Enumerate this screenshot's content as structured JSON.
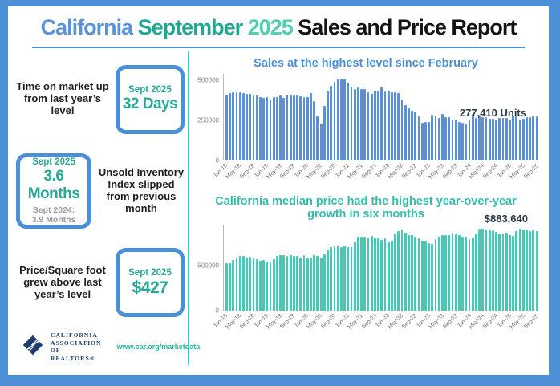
{
  "title": {
    "part1": "California",
    "part2": "September",
    "part3": "2025",
    "part4": "Sales and Price Report"
  },
  "colors": {
    "frame_blue": "#4e90d5",
    "divider_teal": "#40c9b6",
    "stat_teal": "#29a896",
    "stat_gray": "#9b9b9b",
    "annotation_dark": "#2d3a45"
  },
  "stats": [
    {
      "label": "Time on market up from last year’s level",
      "box_heading": "Sept 2025",
      "box_value": "32 Days"
    },
    {
      "box_heading": "Sept 2025",
      "box_value": "3.6 Months",
      "box_sub1": "Sept 2024:",
      "box_sub2": "3.9 Months",
      "label": "Unsold Inventory Index slipped from previous month"
    },
    {
      "label": "Price/Square foot grew above last year’s level",
      "box_heading": "Sept 2025",
      "box_value": "$427"
    }
  ],
  "footer": {
    "org_line1": "CALIFORNIA",
    "org_line2": "ASSOCIATION",
    "org_line3": "OF REALTORS®",
    "url": "www.car.org/marketdata"
  },
  "chart_data": [
    {
      "type": "bar",
      "title": "Sales at the highest level since February",
      "title_color": "#4a90d8",
      "bar_color": "#5c90d6",
      "annotation": "277,410 Units",
      "ylabel": "",
      "xlabel": "",
      "ylim": [
        0,
        540000
      ],
      "grid": false,
      "y_ticks": [
        {
          "label": "500000",
          "value": 500000
        },
        {
          "label": "250000",
          "value": 250000
        },
        {
          "label": "0",
          "value": 0
        }
      ],
      "x_tick_every": 4,
      "x_tick_labels": [
        "Jan-18",
        "May-18",
        "Sep-18",
        "Jan-19",
        "May-19",
        "Sep-19",
        "Jan-20",
        "May-20",
        "Sep-20",
        "Jan-21",
        "May-21",
        "Sep-21",
        "Jan-22",
        "May-22",
        "Sep-22",
        "Jan-23",
        "May-23",
        "Sep-23",
        "Jan-24",
        "May-24",
        "Sep-24",
        "Jan-25",
        "May-25",
        "Sep-25"
      ],
      "values": [
        412000,
        423000,
        424000,
        427000,
        425000,
        423000,
        416000,
        415000,
        404000,
        404000,
        398000,
        390000,
        397000,
        383000,
        397000,
        396000,
        404000,
        390000,
        411000,
        406000,
        404000,
        404000,
        402000,
        398000,
        395000,
        421000,
        373000,
        277000,
        232000,
        339000,
        437000,
        465000,
        489000,
        512000,
        508000,
        509000,
        484000,
        462000,
        446000,
        458000,
        445000,
        444000,
        428000,
        414000,
        438000,
        434000,
        454000,
        430000,
        430000,
        424000,
        426000,
        419000,
        380000,
        344000,
        331000,
        313000,
        306000,
        274000,
        238000,
        241000,
        242000,
        284000,
        281000,
        267000,
        290000,
        270000,
        270000,
        254000,
        254000,
        241000,
        237000,
        225000,
        256000,
        290000,
        267000,
        276000,
        272000,
        270000,
        261000,
        263000,
        253000,
        264000,
        268000,
        268000,
        254000,
        283000,
        277000,
        254000,
        263000,
        270000,
        272000,
        276000,
        277410
      ]
    },
    {
      "type": "bar",
      "title": "California median price had the highest year-over-year growth in six months",
      "title_color": "#2fbfab",
      "bar_color": "#45c8b4",
      "annotation": "$883,640",
      "ylabel": "",
      "xlabel": "",
      "ylim": [
        0,
        950000
      ],
      "grid": false,
      "y_ticks": [
        {
          "label": "500000",
          "value": 500000
        },
        {
          "label": "0",
          "value": 0
        }
      ],
      "x_tick_every": 4,
      "x_tick_labels": [
        "Jan-18",
        "May-18",
        "Sep-18",
        "Jan-19",
        "May-19",
        "Sep-19",
        "Jan-20",
        "May-20",
        "Sep-20",
        "Jan-21",
        "May-21",
        "Sep-21",
        "Jan-22",
        "May-22",
        "Sep-22",
        "Jan-23",
        "May-23",
        "Sep-23",
        "Jan-24",
        "May-24",
        "Sep-24",
        "Jan-25",
        "May-25",
        "Sep-25"
      ],
      "values": [
        527800,
        522440,
        564830,
        584460,
        600860,
        602760,
        591460,
        596410,
        578850,
        572000,
        554760,
        557330,
        538690,
        534140,
        565880,
        602920,
        611190,
        611420,
        607990,
        617410,
        605680,
        605280,
        589770,
        615090,
        575160,
        578690,
        612440,
        606410,
        588070,
        626170,
        666320,
        706900,
        712430,
        711300,
        699000,
        717930,
        699890,
        699000,
        758990,
        813980,
        818260,
        819630,
        811170,
        827940,
        808890,
        798250,
        782480,
        796570,
        765580,
        771270,
        849080,
        884890,
        898980,
        863790,
        833910,
        839460,
        821680,
        801190,
        777500,
        774580,
        751330,
        735480,
        791490,
        815340,
        836110,
        838260,
        832340,
        859800,
        843340,
        840360,
        822200,
        819740,
        788940,
        806490,
        854490,
        904190,
        908040,
        900720,
        886560,
        888740,
        868150,
        852880,
        852600,
        861020,
        838850,
        829060,
        884350,
        910160,
        900170,
        899560,
        884050,
        884950,
        883640
      ]
    }
  ]
}
